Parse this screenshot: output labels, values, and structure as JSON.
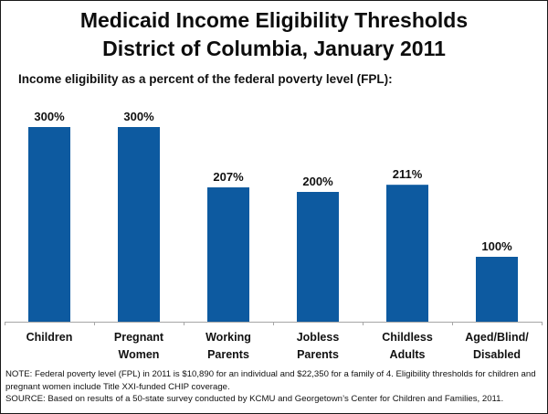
{
  "title_line1": "Medicaid Income Eligibility Thresholds",
  "title_line2": "District of Columbia, January 2011",
  "subtitle": "Income eligibility as a percent of the federal poverty level (FPL):",
  "colors": {
    "bar": "#0d5aa0",
    "axis": "#a6a6a6",
    "text": "#111111"
  },
  "chart_data": {
    "type": "bar",
    "title": "Medicaid Income Eligibility Thresholds District of Columbia, January 2011",
    "subtitle": "Income eligibility as a percent of the federal poverty level (FPL):",
    "xlabel": "",
    "ylabel": "",
    "ylim": [
      0,
      300
    ],
    "grid": false,
    "legend": "none",
    "categories": [
      [
        "Children"
      ],
      [
        "Pregnant",
        "Women"
      ],
      [
        "Working",
        "Parents"
      ],
      [
        "Jobless",
        "Parents"
      ],
      [
        "Childless",
        "Adults"
      ],
      [
        "Aged/Blind/",
        "Disabled"
      ]
    ],
    "values": [
      300,
      300,
      207,
      200,
      211,
      100
    ],
    "data_labels": [
      "300%",
      "300%",
      "207%",
      "200%",
      "211%",
      "100%"
    ]
  },
  "footnotes": {
    "note_line1": "NOTE: Federal poverty level (FPL) in 2011 is $10,890 for an individual and  $22,350 for a family of 4. Eligibility thresholds for children and",
    "note_line2": "pregnant women  include Title XXI-funded CHIP coverage.",
    "source": "SOURCE: Based on results of a 50-state survey conducted by KCMU and Georgetown’s Center for Children and Families, 2011."
  }
}
